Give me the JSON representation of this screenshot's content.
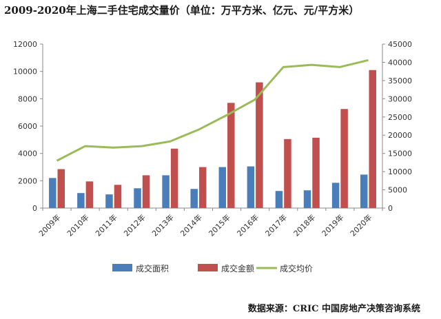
{
  "chart_data": {
    "type": "bar",
    "title": "2009-2020年上海二手住宅成交量价（单位：万平方米、亿元、元/平方米）",
    "categories": [
      "2009年",
      "2010年",
      "2011年",
      "2012年",
      "2013年",
      "2014年",
      "2015年",
      "2016年",
      "2017年",
      "2018年",
      "2019年",
      "2020年"
    ],
    "series": [
      {
        "name": "成交面积",
        "type": "bar",
        "axis": "left",
        "color": "#4a7ebb",
        "values": [
          2200,
          1100,
          1000,
          1450,
          2400,
          1400,
          3000,
          3050,
          1250,
          1300,
          1850,
          2450
        ]
      },
      {
        "name": "成交金额",
        "type": "bar",
        "axis": "left",
        "color": "#c0504d",
        "values": [
          2850,
          1950,
          1700,
          2400,
          4350,
          3000,
          7700,
          9200,
          5050,
          5150,
          7250,
          10100
        ]
      },
      {
        "name": "成交均价",
        "type": "line",
        "axis": "right",
        "color": "#9bbb59",
        "values": [
          13000,
          17000,
          16600,
          17000,
          18300,
          21500,
          25500,
          29800,
          38700,
          39300,
          38700,
          40600
        ]
      }
    ],
    "ylim_left": [
      0,
      12000
    ],
    "yticks_left": [
      0,
      2000,
      4000,
      6000,
      8000,
      10000,
      12000
    ],
    "ylim_right": [
      0,
      45000
    ],
    "yticks_right": [
      0,
      5000,
      10000,
      15000,
      20000,
      25000,
      30000,
      35000,
      40000,
      45000
    ],
    "grid": false,
    "legend_position": "bottom"
  },
  "source": "数据来源：CRIC 中国房地产决策咨询系统"
}
